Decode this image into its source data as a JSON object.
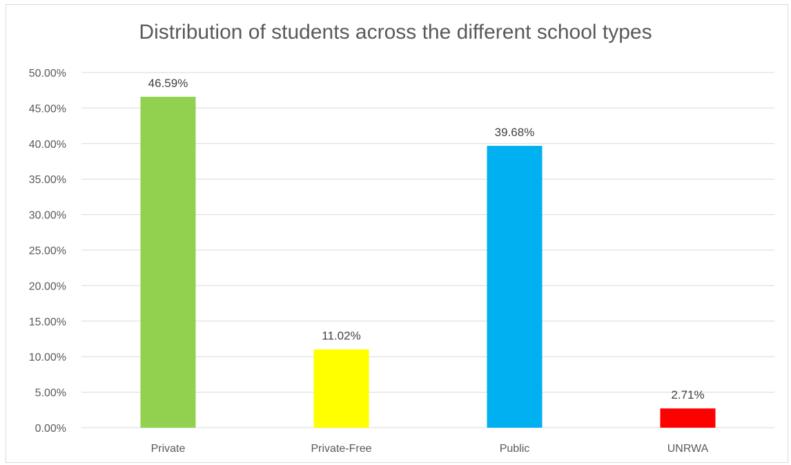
{
  "chart_data": {
    "type": "bar",
    "title": "Distribution of students across the different school types",
    "categories": [
      "Private",
      "Private-Free",
      "Public",
      "UNRWA"
    ],
    "values": [
      46.59,
      11.02,
      39.68,
      2.71
    ],
    "value_labels": [
      "46.59%",
      "11.02%",
      "39.68%",
      "2.71%"
    ],
    "colors": [
      "#92d050",
      "#ffff00",
      "#00b0f0",
      "#ff0000"
    ],
    "ylim": [
      0,
      50
    ],
    "yticks": [
      0,
      5,
      10,
      15,
      20,
      25,
      30,
      35,
      40,
      45,
      50
    ],
    "ytick_labels": [
      "0.00%",
      "5.00%",
      "10.00%",
      "15.00%",
      "20.00%",
      "25.00%",
      "30.00%",
      "35.00%",
      "40.00%",
      "45.00%",
      "50.00%"
    ],
    "xlabel": "",
    "ylabel": "",
    "grid": true,
    "gridline_color": "#d9d9d9",
    "legend": "none"
  }
}
